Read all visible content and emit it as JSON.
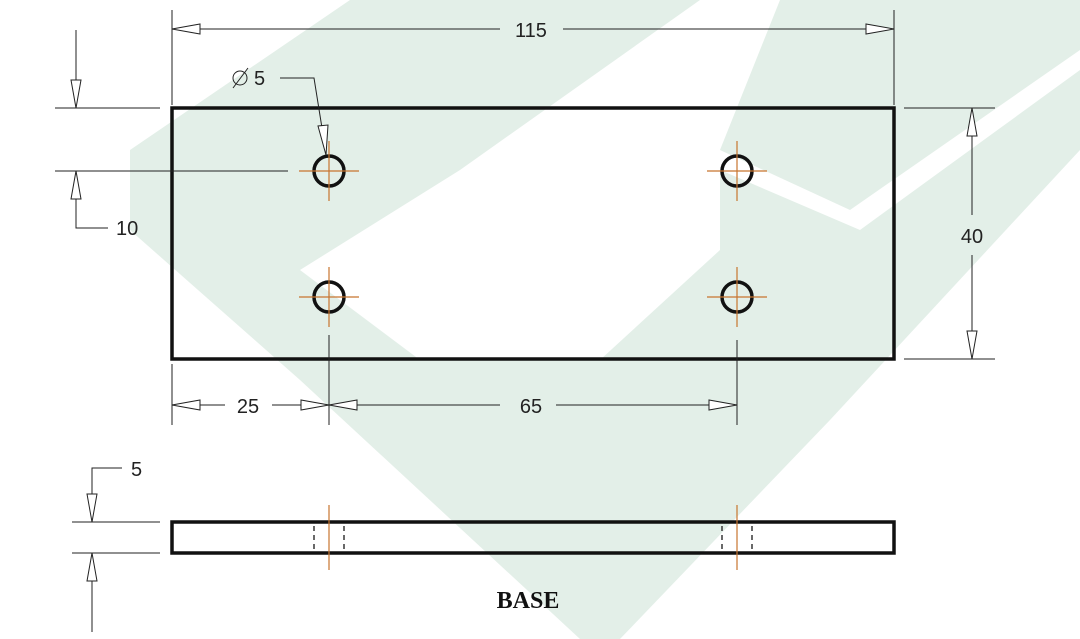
{
  "drawing": {
    "title": "BASE",
    "colors": {
      "outline": "#111111",
      "centerline": "#c8742e",
      "watermark": "#e3efe8"
    }
  },
  "dimensions": {
    "overall_length": "115",
    "hole_diameter": "5",
    "hole_offset_top": "10",
    "height": "40",
    "hole_offset_left": "25",
    "hole_spacing": "65",
    "thickness": "5"
  }
}
